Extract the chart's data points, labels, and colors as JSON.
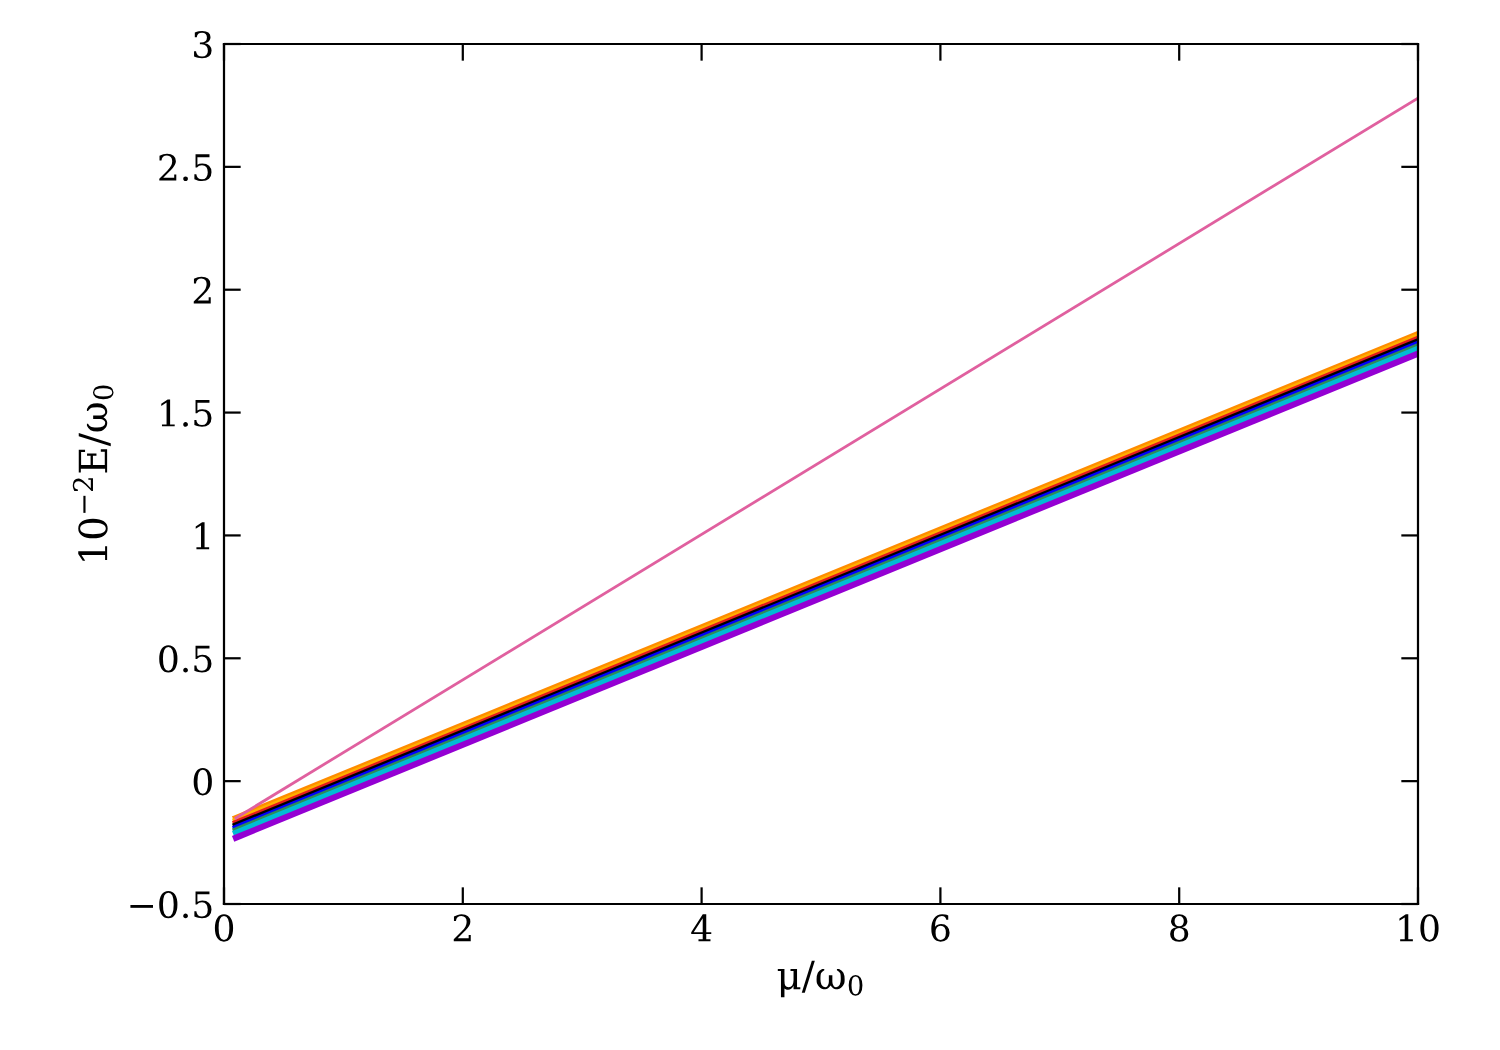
{
  "chart_data": {
    "type": "line",
    "xlabel": "μ/ω$_{0}$",
    "ylabel": "10$^{−2}$E/ω$_{0}$",
    "x": [
      0.1,
      10
    ],
    "series": [
      {
        "color": "#ff8c00",
        "values": [
          -0.15,
          1.82
        ]
      },
      {
        "color": "#ffb000",
        "values": [
          -0.16,
          1.81
        ]
      },
      {
        "color": "#e41a1c",
        "values": [
          -0.17,
          1.8
        ]
      },
      {
        "color": "#000000",
        "values": [
          -0.18,
          1.79
        ]
      },
      {
        "color": "#0000ff",
        "values": [
          -0.19,
          1.78
        ]
      },
      {
        "color": "#2e8b57",
        "values": [
          -0.2,
          1.77
        ]
      },
      {
        "color": "#00bcd4",
        "values": [
          -0.21,
          1.76
        ]
      },
      {
        "color": "#9400d3",
        "values": [
          -0.23,
          1.74
        ]
      },
      {
        "color": "#e0609f",
        "values": [
          -0.15,
          2.78
        ]
      }
    ],
    "xlim": [
      0,
      10
    ],
    "xticks": [
      0,
      2,
      4,
      6,
      8,
      10
    ],
    "ylim": [
      -0.5,
      3
    ],
    "yticks": [
      {
        "value": -0.5,
        "label": "−0.5"
      },
      0,
      0.5,
      1,
      1.5,
      2,
      2.5,
      3
    ],
    "grid": false,
    "legend": false,
    "marker": "none",
    "line_style": "solid"
  }
}
